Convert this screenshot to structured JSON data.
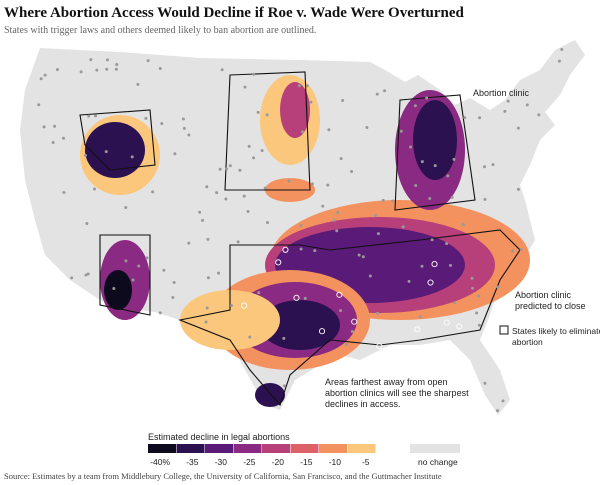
{
  "header": {
    "title": "Where Abortion Access Would Decline if Roe v. Wade Were Overturned",
    "subtitle": "States with trigger laws and others deemed likely to ban abortion are outlined."
  },
  "annotations": {
    "clinic": "Abortion clinic",
    "closing": [
      "Abortion clinic",
      "predicted to close"
    ],
    "states": [
      "States likely to eliminate",
      "abortion"
    ],
    "note": [
      "Areas farthest away from open",
      "abortion clinics will see the sharpest",
      "declines in access."
    ]
  },
  "legend": {
    "title": "Estimated decline in legal abortions",
    "items": [
      {
        "label": "-40%",
        "color": "#0d0a1e"
      },
      {
        "label": "-35",
        "color": "#2c1151"
      },
      {
        "label": "-30",
        "color": "#5a1a78"
      },
      {
        "label": "-25",
        "color": "#8a2a82"
      },
      {
        "label": "-20",
        "color": "#b8407a"
      },
      {
        "label": "-15",
        "color": "#dd6169"
      },
      {
        "label": "-10",
        "color": "#f3925f"
      },
      {
        "label": "-5",
        "color": "#fbc77c"
      },
      {
        "label": "no change",
        "color": "#e3e3e3"
      }
    ]
  },
  "source": "Source: Estimates by a team from Middlebury College, the University of California, San Francisco, and the Guttmacher Institute"
}
